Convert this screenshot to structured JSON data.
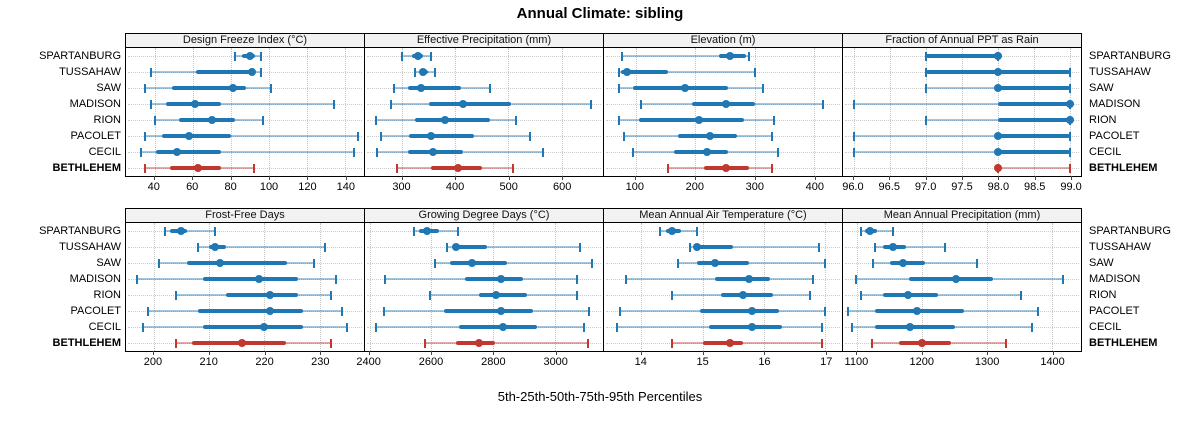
{
  "title": "Annual Climate: sibling",
  "caption": "5th-25th-50th-75th-95th Percentiles",
  "colors": {
    "series_blue": "#1f77b4",
    "series_blue_light": "rgba(31,119,180,0.42)",
    "highlight_red": "#c03830",
    "highlight_red_light": "rgba(192,56,48,0.42)",
    "panel_header_bg": "#f2f2f2",
    "grid": "#c4c4c4",
    "border": "#000000"
  },
  "locations": [
    {
      "name": "SPARTANBURG",
      "bold": false,
      "color": "blue"
    },
    {
      "name": "TUSSAHAW",
      "bold": false,
      "color": "blue"
    },
    {
      "name": "SAW",
      "bold": false,
      "color": "blue"
    },
    {
      "name": "MADISON",
      "bold": false,
      "color": "blue"
    },
    {
      "name": "RION",
      "bold": false,
      "color": "blue"
    },
    {
      "name": "PACOLET",
      "bold": false,
      "color": "blue"
    },
    {
      "name": "CECIL",
      "bold": false,
      "color": "blue"
    },
    {
      "name": "BETHLEHEM",
      "bold": true,
      "color": "red"
    }
  ],
  "chart_data": [
    {
      "type": "dotplot-percentiles",
      "title": "Design Freeze Index (°C)",
      "xlim": [
        25,
        150
      ],
      "ticks": [
        {
          "v": 40,
          "label": "40"
        },
        {
          "v": 60,
          "label": "60"
        },
        {
          "v": 80,
          "label": "80"
        },
        {
          "v": 100,
          "label": "100"
        },
        {
          "v": 120,
          "label": "120"
        },
        {
          "v": 140,
          "label": "140"
        }
      ],
      "series": [
        {
          "location": "SPARTANBURG",
          "p5": 82,
          "p25": 86,
          "p50": 90,
          "p75": 93,
          "p95": 96
        },
        {
          "location": "TUSSAHAW",
          "p5": 38,
          "p25": 62,
          "p50": 91,
          "p75": 93,
          "p95": 96
        },
        {
          "location": "SAW",
          "p5": 35,
          "p25": 49,
          "p50": 81,
          "p75": 88,
          "p95": 101
        },
        {
          "location": "MADISON",
          "p5": 38,
          "p25": 46,
          "p50": 61,
          "p75": 75,
          "p95": 134
        },
        {
          "location": "RION",
          "p5": 40,
          "p25": 53,
          "p50": 70,
          "p75": 82,
          "p95": 97
        },
        {
          "location": "PACOLET",
          "p5": 35,
          "p25": 44,
          "p50": 58,
          "p75": 80,
          "p95": 147
        },
        {
          "location": "CECIL",
          "p5": 33,
          "p25": 41,
          "p50": 52,
          "p75": 75,
          "p95": 145
        },
        {
          "location": "BETHLEHEM",
          "p5": 35,
          "p25": 48,
          "p50": 63,
          "p75": 75,
          "p95": 92
        }
      ]
    },
    {
      "type": "dotplot-percentiles",
      "title": "Effective Precipitation (mm)",
      "xlim": [
        230,
        678
      ],
      "ticks": [
        {
          "v": 300,
          "label": "300"
        },
        {
          "v": 400,
          "label": "400"
        },
        {
          "v": 500,
          "label": "500"
        },
        {
          "v": 600,
          "label": "600"
        }
      ],
      "series": [
        {
          "location": "SPARTANBURG",
          "p5": 300,
          "p25": 318,
          "p50": 330,
          "p75": 340,
          "p95": 355
        },
        {
          "location": "TUSSAHAW",
          "p5": 325,
          "p25": 333,
          "p50": 340,
          "p75": 348,
          "p95": 362
        },
        {
          "location": "SAW",
          "p5": 285,
          "p25": 310,
          "p50": 335,
          "p75": 410,
          "p95": 465
        },
        {
          "location": "MADISON",
          "p5": 278,
          "p25": 350,
          "p50": 415,
          "p75": 505,
          "p95": 655
        },
        {
          "location": "RION",
          "p5": 250,
          "p25": 325,
          "p50": 380,
          "p75": 465,
          "p95": 515
        },
        {
          "location": "PACOLET",
          "p5": 260,
          "p25": 312,
          "p50": 355,
          "p75": 435,
          "p95": 540
        },
        {
          "location": "CECIL",
          "p5": 252,
          "p25": 310,
          "p50": 358,
          "p75": 415,
          "p95": 565
        },
        {
          "location": "BETHLEHEM",
          "p5": 290,
          "p25": 355,
          "p50": 405,
          "p75": 450,
          "p95": 508
        }
      ]
    },
    {
      "type": "dotplot-percentiles",
      "title": "Elevation (m)",
      "xlim": [
        47,
        447
      ],
      "ticks": [
        {
          "v": 100,
          "label": "100"
        },
        {
          "v": 200,
          "label": "200"
        },
        {
          "v": 300,
          "label": "300"
        },
        {
          "v": 400,
          "label": "400"
        }
      ],
      "series": [
        {
          "location": "SPARTANBURG",
          "p5": 77,
          "p25": 240,
          "p50": 258,
          "p75": 285,
          "p95": 290
        },
        {
          "location": "TUSSAHAW",
          "p5": 73,
          "p25": 76,
          "p50": 85,
          "p75": 155,
          "p95": 300
        },
        {
          "location": "SAW",
          "p5": 72,
          "p25": 95,
          "p50": 183,
          "p75": 255,
          "p95": 315
        },
        {
          "location": "MADISON",
          "p5": 110,
          "p25": 195,
          "p50": 252,
          "p75": 300,
          "p95": 415
        },
        {
          "location": "RION",
          "p5": 72,
          "p25": 105,
          "p50": 207,
          "p75": 282,
          "p95": 332
        },
        {
          "location": "PACOLET",
          "p5": 80,
          "p25": 172,
          "p50": 225,
          "p75": 270,
          "p95": 330
        },
        {
          "location": "CECIL",
          "p5": 95,
          "p25": 165,
          "p50": 220,
          "p75": 255,
          "p95": 340
        },
        {
          "location": "BETHLEHEM",
          "p5": 155,
          "p25": 215,
          "p50": 252,
          "p75": 290,
          "p95": 330
        }
      ]
    },
    {
      "type": "dotplot-percentiles",
      "title": "Fraction of Annual PPT as Rain",
      "xlim": [
        95.85,
        99.15
      ],
      "ticks": [
        {
          "v": 96.0,
          "label": "96.0"
        },
        {
          "v": 96.5,
          "label": "96.5"
        },
        {
          "v": 97.0,
          "label": "97.0"
        },
        {
          "v": 97.5,
          "label": "97.5"
        },
        {
          "v": 98.0,
          "label": "98.0"
        },
        {
          "v": 98.5,
          "label": "98.5"
        },
        {
          "v": 99.0,
          "label": "99.0"
        }
      ],
      "series": [
        {
          "location": "SPARTANBURG",
          "p5": 97,
          "p25": 97,
          "p50": 98,
          "p75": 98,
          "p95": 98
        },
        {
          "location": "TUSSAHAW",
          "p5": 97,
          "p25": 97,
          "p50": 98,
          "p75": 99,
          "p95": 99
        },
        {
          "location": "SAW",
          "p5": 97,
          "p25": 98,
          "p50": 98,
          "p75": 99,
          "p95": 99
        },
        {
          "location": "MADISON",
          "p5": 96,
          "p25": 98,
          "p50": 99,
          "p75": 99,
          "p95": 99
        },
        {
          "location": "RION",
          "p5": 97,
          "p25": 98,
          "p50": 99,
          "p75": 99,
          "p95": 99
        },
        {
          "location": "PACOLET",
          "p5": 96,
          "p25": 98,
          "p50": 98,
          "p75": 99,
          "p95": 99
        },
        {
          "location": "CECIL",
          "p5": 96,
          "p25": 98,
          "p50": 98,
          "p75": 99,
          "p95": 99
        },
        {
          "location": "BETHLEHEM",
          "p5": 98,
          "p25": 98,
          "p50": 98,
          "p75": 98,
          "p95": 99
        }
      ]
    },
    {
      "type": "dotplot-percentiles",
      "title": "Frost-Free Days",
      "xlim": [
        195,
        238
      ],
      "ticks": [
        {
          "v": 200,
          "label": "200"
        },
        {
          "v": 210,
          "label": "210"
        },
        {
          "v": 220,
          "label": "220"
        },
        {
          "v": 230,
          "label": "230"
        }
      ],
      "series": [
        {
          "location": "SPARTANBURG",
          "p5": 202,
          "p25": 203,
          "p50": 205,
          "p75": 206,
          "p95": 211
        },
        {
          "location": "TUSSAHAW",
          "p5": 208,
          "p25": 210,
          "p50": 211,
          "p75": 213,
          "p95": 231
        },
        {
          "location": "SAW",
          "p5": 201,
          "p25": 206,
          "p50": 212,
          "p75": 224,
          "p95": 229
        },
        {
          "location": "MADISON",
          "p5": 197,
          "p25": 209,
          "p50": 219,
          "p75": 226,
          "p95": 233
        },
        {
          "location": "RION",
          "p5": 204,
          "p25": 213,
          "p50": 221,
          "p75": 226,
          "p95": 232
        },
        {
          "location": "PACOLET",
          "p5": 199,
          "p25": 208,
          "p50": 221,
          "p75": 227,
          "p95": 234
        },
        {
          "location": "CECIL",
          "p5": 198,
          "p25": 209,
          "p50": 220,
          "p75": 227,
          "p95": 235
        },
        {
          "location": "BETHLEHEM",
          "p5": 204,
          "p25": 207,
          "p50": 216,
          "p75": 224,
          "p95": 232
        }
      ]
    },
    {
      "type": "dotplot-percentiles",
      "title": "Growing Degree Days (°C)",
      "xlim": [
        2385,
        3155
      ],
      "ticks": [
        {
          "v": 2400,
          "label": "2400"
        },
        {
          "v": 2600,
          "label": "2600"
        },
        {
          "v": 2800,
          "label": "2800"
        },
        {
          "v": 3000,
          "label": "3000"
        }
      ],
      "series": [
        {
          "location": "SPARTANBURG",
          "p5": 2545,
          "p25": 2560,
          "p50": 2585,
          "p75": 2625,
          "p95": 2685
        },
        {
          "location": "TUSSAHAW",
          "p5": 2650,
          "p25": 2665,
          "p50": 2680,
          "p75": 2780,
          "p95": 3080
        },
        {
          "location": "SAW",
          "p5": 2610,
          "p25": 2660,
          "p50": 2730,
          "p75": 2845,
          "p95": 3120
        },
        {
          "location": "MADISON",
          "p5": 2450,
          "p25": 2710,
          "p50": 2825,
          "p75": 2895,
          "p95": 3070
        },
        {
          "location": "RION",
          "p5": 2595,
          "p25": 2755,
          "p50": 2810,
          "p75": 2910,
          "p95": 3070
        },
        {
          "location": "PACOLET",
          "p5": 2445,
          "p25": 2640,
          "p50": 2825,
          "p75": 2930,
          "p95": 3110
        },
        {
          "location": "CECIL",
          "p5": 2420,
          "p25": 2690,
          "p50": 2830,
          "p75": 2940,
          "p95": 3095
        },
        {
          "location": "BETHLEHEM",
          "p5": 2580,
          "p25": 2680,
          "p50": 2755,
          "p75": 2805,
          "p95": 3105
        }
      ]
    },
    {
      "type": "dotplot-percentiles",
      "title": "Mean Annual Air Temperature (°C)",
      "xlim": [
        13.39,
        17.27
      ],
      "ticks": [
        {
          "v": 14,
          "label": "14"
        },
        {
          "v": 15,
          "label": "15"
        },
        {
          "v": 16,
          "label": "16"
        },
        {
          "v": 17,
          "label": "17"
        }
      ],
      "series": [
        {
          "location": "SPARTANBURG",
          "p5": 14.3,
          "p25": 14.4,
          "p50": 14.5,
          "p75": 14.65,
          "p95": 14.9
        },
        {
          "location": "TUSSAHAW",
          "p5": 14.8,
          "p25": 14.85,
          "p50": 14.9,
          "p75": 15.5,
          "p95": 16.9
        },
        {
          "location": "SAW",
          "p5": 14.6,
          "p25": 14.9,
          "p50": 15.2,
          "p75": 15.75,
          "p95": 17.0
        },
        {
          "location": "MADISON",
          "p5": 13.75,
          "p25": 15.2,
          "p50": 15.75,
          "p75": 16.1,
          "p95": 16.8
        },
        {
          "location": "RION",
          "p5": 14.5,
          "p25": 15.3,
          "p50": 15.65,
          "p75": 16.15,
          "p95": 16.75
        },
        {
          "location": "PACOLET",
          "p5": 13.65,
          "p25": 14.95,
          "p50": 15.8,
          "p75": 16.25,
          "p95": 17.0
        },
        {
          "location": "CECIL",
          "p5": 13.6,
          "p25": 15.1,
          "p50": 15.8,
          "p75": 16.3,
          "p95": 16.95
        },
        {
          "location": "BETHLEHEM",
          "p5": 14.5,
          "p25": 15.0,
          "p50": 15.45,
          "p75": 15.65,
          "p95": 16.95
        }
      ]
    },
    {
      "type": "dotplot-percentiles",
      "title": "Mean Annual Precipitation (mm)",
      "xlim": [
        1078,
        1445
      ],
      "ticks": [
        {
          "v": 1100,
          "label": "1100"
        },
        {
          "v": 1200,
          "label": "1200"
        },
        {
          "v": 1300,
          "label": "1300"
        },
        {
          "v": 1400,
          "label": "1400"
        }
      ],
      "series": [
        {
          "location": "SPARTANBURG",
          "p5": 1105,
          "p25": 1112,
          "p50": 1120,
          "p75": 1130,
          "p95": 1155
        },
        {
          "location": "TUSSAHAW",
          "p5": 1128,
          "p25": 1140,
          "p50": 1155,
          "p75": 1175,
          "p95": 1235
        },
        {
          "location": "SAW",
          "p5": 1125,
          "p25": 1150,
          "p50": 1170,
          "p75": 1205,
          "p95": 1285
        },
        {
          "location": "MADISON",
          "p5": 1098,
          "p25": 1180,
          "p50": 1252,
          "p75": 1310,
          "p95": 1418
        },
        {
          "location": "RION",
          "p5": 1105,
          "p25": 1140,
          "p50": 1178,
          "p75": 1225,
          "p95": 1352
        },
        {
          "location": "PACOLET",
          "p5": 1085,
          "p25": 1128,
          "p50": 1192,
          "p75": 1265,
          "p95": 1378
        },
        {
          "location": "CECIL",
          "p5": 1092,
          "p25": 1128,
          "p50": 1182,
          "p75": 1250,
          "p95": 1370
        },
        {
          "location": "BETHLEHEM",
          "p5": 1122,
          "p25": 1165,
          "p50": 1200,
          "p75": 1245,
          "p95": 1330
        }
      ]
    }
  ]
}
